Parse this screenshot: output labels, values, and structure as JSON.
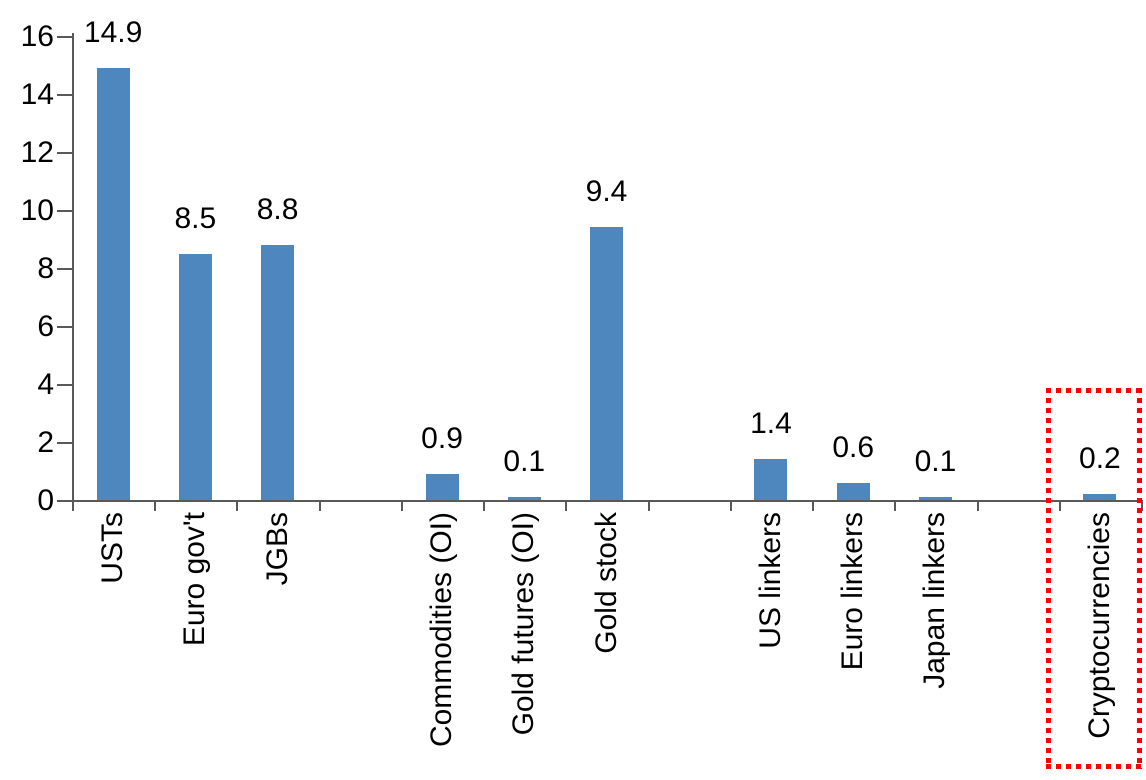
{
  "chart_data": {
    "type": "bar",
    "title": "",
    "xlabel": "",
    "ylabel": "",
    "categories": [
      "USTs",
      "Euro gov't",
      "JGBs",
      "Commodities (OI)",
      "Gold futures (OI)",
      "Gold stock",
      "US linkers",
      "Euro linkers",
      "Japan linkers",
      "Cryptocurrencies"
    ],
    "values": [
      14.9,
      8.5,
      8.8,
      0.9,
      0.1,
      9.4,
      1.4,
      0.6,
      0.1,
      0.2
    ],
    "data_labels": [
      "14.9",
      "8.5",
      "8.8",
      "0.9",
      "0.1",
      "9.4",
      "1.4",
      "0.6",
      "0.1",
      "0.2"
    ],
    "groups": [
      [
        "USTs",
        "Euro gov't",
        "JGBs"
      ],
      [
        "Commodities (OI)",
        "Gold futures (OI)",
        "Gold stock"
      ],
      [
        "US linkers",
        "Euro linkers",
        "Japan linkers"
      ],
      [
        "Cryptocurrencies"
      ]
    ],
    "slots": [
      1,
      2,
      3,
      5,
      6,
      7,
      9,
      10,
      11,
      13
    ],
    "total_slots": 13,
    "y_ticks": [
      "0",
      "2",
      "4",
      "6",
      "8",
      "10",
      "12",
      "14",
      "16"
    ],
    "y_tick_values": [
      0,
      2,
      4,
      6,
      8,
      10,
      12,
      14,
      16
    ],
    "ylim": [
      0,
      16
    ],
    "grid": false,
    "legend": "none",
    "bar_color": "#4e86be",
    "axis_color": "#595959",
    "label_color": "#000000",
    "highlight": {
      "category": "Cryptocurrencies",
      "style": "dotted-rectangle",
      "color": "#ff0000"
    }
  }
}
